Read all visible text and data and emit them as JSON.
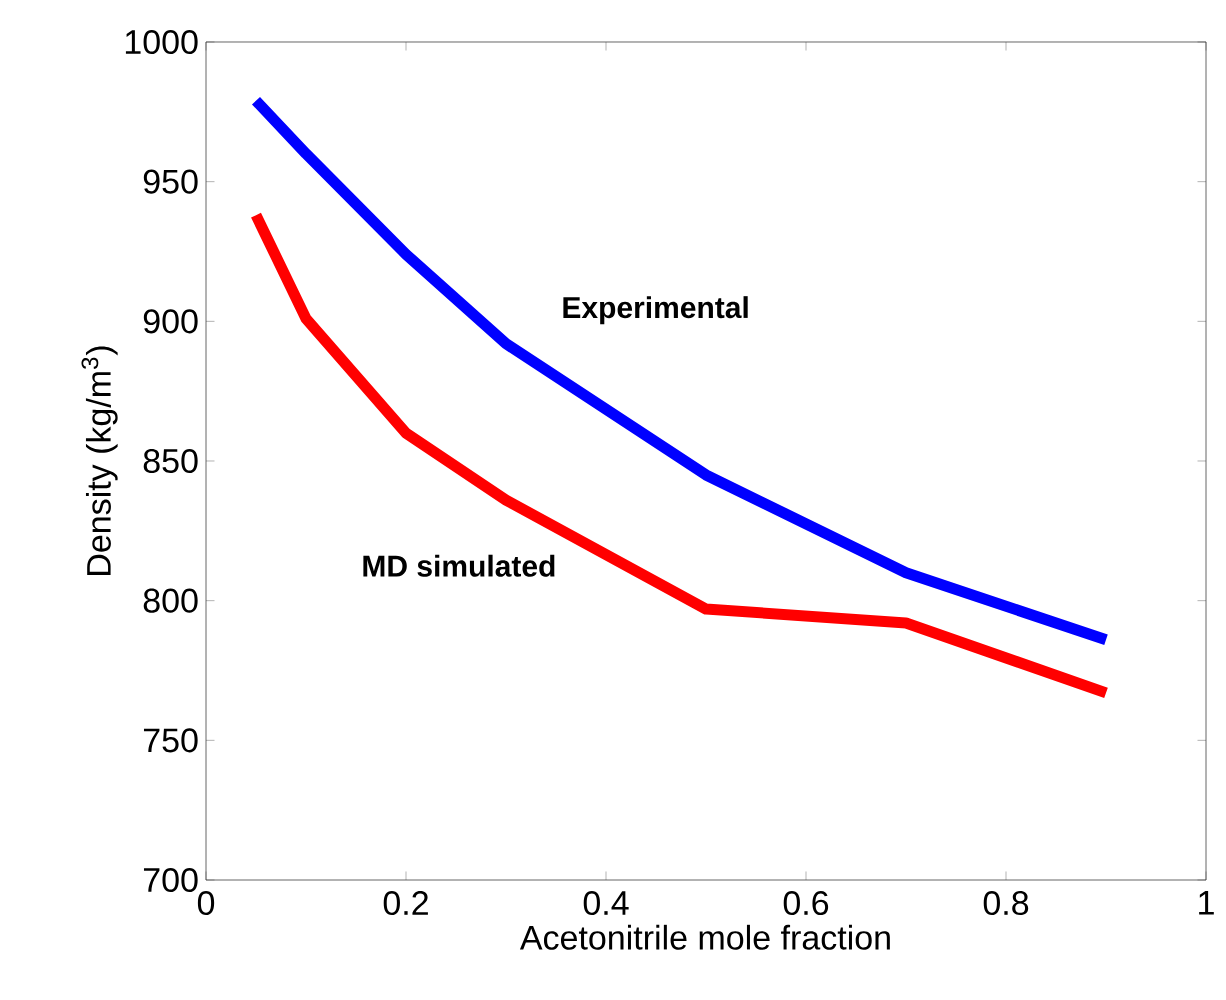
{
  "chart_data": {
    "type": "line",
    "xlabel": "Acetonitrile mole fraction",
    "ylabel": "Density (kg/m$^{3}$)",
    "x": [
      0.05,
      0.1,
      0.2,
      0.3,
      0.5,
      0.7,
      0.9
    ],
    "series": [
      {
        "color": "#0000ff",
        "values": [
          979,
          960,
          924,
          892,
          845,
          810,
          786
        ]
      },
      {
        "color": "#ff0000",
        "values": [
          938,
          901,
          860,
          836,
          797,
          792,
          767
        ]
      }
    ],
    "annotations": [
      "Experimental",
      "MD simulated"
    ],
    "xlim": [
      0,
      1
    ],
    "ylim": [
      700,
      1000
    ],
    "xticks": [
      0,
      0.2,
      0.4,
      0.6,
      0.8,
      1
    ],
    "yticks": [
      700,
      750,
      800,
      850,
      900,
      950,
      1000
    ],
    "grid": false,
    "marker": "none",
    "line_style": "solid"
  }
}
